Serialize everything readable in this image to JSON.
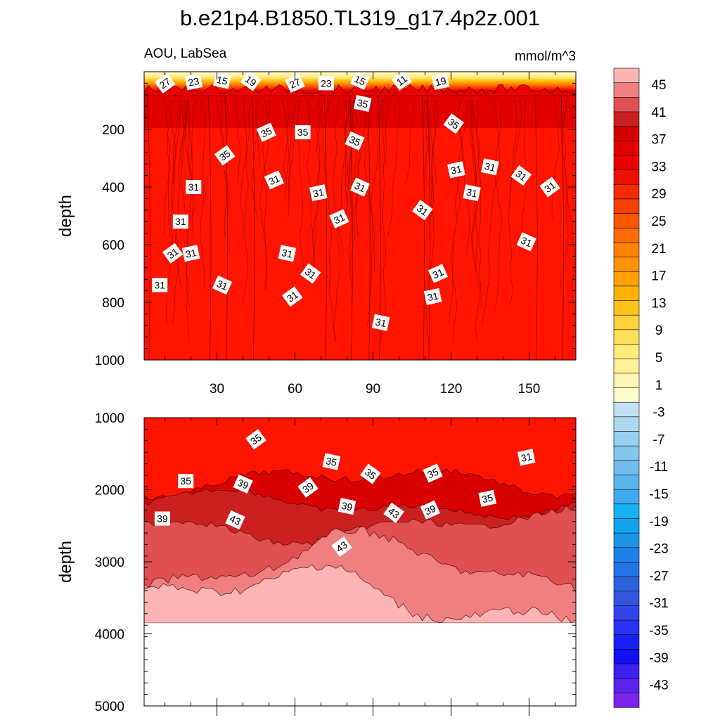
{
  "chart_data": {
    "type": "heatmap",
    "title": "b.e21p4.B1850.TL319_g17.4p2z.001",
    "variable_label": "AOU, LabSea",
    "units_label": "mmol/m^3",
    "x_range": [
      2,
      168
    ],
    "x_ticks": [
      "30",
      "60",
      "90",
      "120",
      "150"
    ],
    "panels": [
      {
        "name": "upper",
        "ylabel": "depth",
        "ylim": [
          0,
          1000
        ],
        "y_ticks": [
          "200",
          "400",
          "600",
          "800",
          "1000"
        ],
        "surface_layer": {
          "depth_range": [
            0,
            60
          ],
          "values": [
            -3,
            5,
            13,
            21,
            27
          ]
        },
        "interior_value": 31,
        "contour_labels": [
          {
            "text": "27",
            "x": 10,
            "y": 40
          },
          {
            "text": "23",
            "x": 21,
            "y": 35
          },
          {
            "text": "15",
            "x": 32,
            "y": 30
          },
          {
            "text": "19",
            "x": 43,
            "y": 32
          },
          {
            "text": "27",
            "x": 60,
            "y": 40
          },
          {
            "text": "23",
            "x": 72,
            "y": 40
          },
          {
            "text": "15",
            "x": 85,
            "y": 30
          },
          {
            "text": "11",
            "x": 101,
            "y": 30
          },
          {
            "text": "19",
            "x": 116,
            "y": 34
          },
          {
            "text": "35",
            "x": 86,
            "y": 110
          },
          {
            "text": "35",
            "x": 121,
            "y": 180
          },
          {
            "text": "35",
            "x": 49,
            "y": 210
          },
          {
            "text": "35",
            "x": 63,
            "y": 210
          },
          {
            "text": "35",
            "x": 83,
            "y": 240
          },
          {
            "text": "35",
            "x": 33,
            "y": 290
          },
          {
            "text": "31",
            "x": 122,
            "y": 340
          },
          {
            "text": "31",
            "x": 135,
            "y": 330
          },
          {
            "text": "31",
            "x": 147,
            "y": 360
          },
          {
            "text": "31",
            "x": 52,
            "y": 375
          },
          {
            "text": "31",
            "x": 21,
            "y": 400
          },
          {
            "text": "31",
            "x": 85,
            "y": 400
          },
          {
            "text": "31",
            "x": 158,
            "y": 400
          },
          {
            "text": "31",
            "x": 69,
            "y": 420
          },
          {
            "text": "31",
            "x": 128,
            "y": 420
          },
          {
            "text": "31",
            "x": 109,
            "y": 480
          },
          {
            "text": "31",
            "x": 77,
            "y": 510
          },
          {
            "text": "31",
            "x": 16,
            "y": 520
          },
          {
            "text": "31",
            "x": 149,
            "y": 590
          },
          {
            "text": "31",
            "x": 13,
            "y": 630
          },
          {
            "text": "31",
            "x": 20,
            "y": 630
          },
          {
            "text": "31",
            "x": 57,
            "y": 630
          },
          {
            "text": "31",
            "x": 66,
            "y": 700
          },
          {
            "text": "31",
            "x": 115,
            "y": 700
          },
          {
            "text": "31",
            "x": 8,
            "y": 740
          },
          {
            "text": "31",
            "x": 32,
            "y": 740
          },
          {
            "text": "31",
            "x": 59,
            "y": 780
          },
          {
            "text": "31",
            "x": 113,
            "y": 780
          },
          {
            "text": "31",
            "x": 93,
            "y": 870
          }
        ]
      },
      {
        "name": "lower",
        "ylabel": "depth",
        "ylim": [
          1000,
          5000
        ],
        "y_ticks": [
          "1000",
          "2000",
          "3000",
          "4000",
          "5000"
        ],
        "seafloor_depth": 3850,
        "contour_labels": [
          {
            "text": "35",
            "x": 45,
            "y": 1300
          },
          {
            "text": "31",
            "x": 149,
            "y": 1550
          },
          {
            "text": "35",
            "x": 74,
            "y": 1610
          },
          {
            "text": "35",
            "x": 89,
            "y": 1780
          },
          {
            "text": "35",
            "x": 113,
            "y": 1770
          },
          {
            "text": "35",
            "x": 18,
            "y": 1880
          },
          {
            "text": "39",
            "x": 40,
            "y": 1920
          },
          {
            "text": "39",
            "x": 65,
            "y": 1970
          },
          {
            "text": "35",
            "x": 134,
            "y": 2120
          },
          {
            "text": "39",
            "x": 80,
            "y": 2230
          },
          {
            "text": "43",
            "x": 98,
            "y": 2320
          },
          {
            "text": "39",
            "x": 112,
            "y": 2280
          },
          {
            "text": "39",
            "x": 9,
            "y": 2400
          },
          {
            "text": "43",
            "x": 37,
            "y": 2420
          },
          {
            "text": "43",
            "x": 78,
            "y": 2790
          }
        ]
      }
    ],
    "colorbar": {
      "tick_labels": [
        "45",
        "41",
        "37",
        "33",
        "29",
        "25",
        "21",
        "17",
        "13",
        "9",
        "5",
        "1",
        "-3",
        "-7",
        "-11",
        "-15",
        "-19",
        "-23",
        "-27",
        "-31",
        "-35",
        "-39",
        "-43"
      ],
      "colors_top_to_bottom": [
        "#fdb4b4",
        "#f08080",
        "#e05050",
        "#cc2020",
        "#d20000",
        "#e00000",
        "#ea0000",
        "#f01000",
        "#f52a00",
        "#f84000",
        "#fb5600",
        "#fd6c00",
        "#fe8200",
        "#ff9200",
        "#ffa200",
        "#ffb200",
        "#ffc21a",
        "#ffd23a",
        "#ffe05a",
        "#ffea7a",
        "#fff09a",
        "#fff6b4",
        "#fffccc",
        "#c2e2f2",
        "#acd8f0",
        "#98d0f0",
        "#84c6ee",
        "#70bcee",
        "#5cb4ee",
        "#40aaf0",
        "#14b4f4",
        "#10a4f0",
        "#1c94ea",
        "#1a84ea",
        "#2474e6",
        "#2c64e0",
        "#3454dc",
        "#3244ec",
        "#2832f8",
        "#1820f8",
        "#1010f4",
        "#3c20f0",
        "#5c22ee",
        "#7c24e8"
      ]
    }
  }
}
